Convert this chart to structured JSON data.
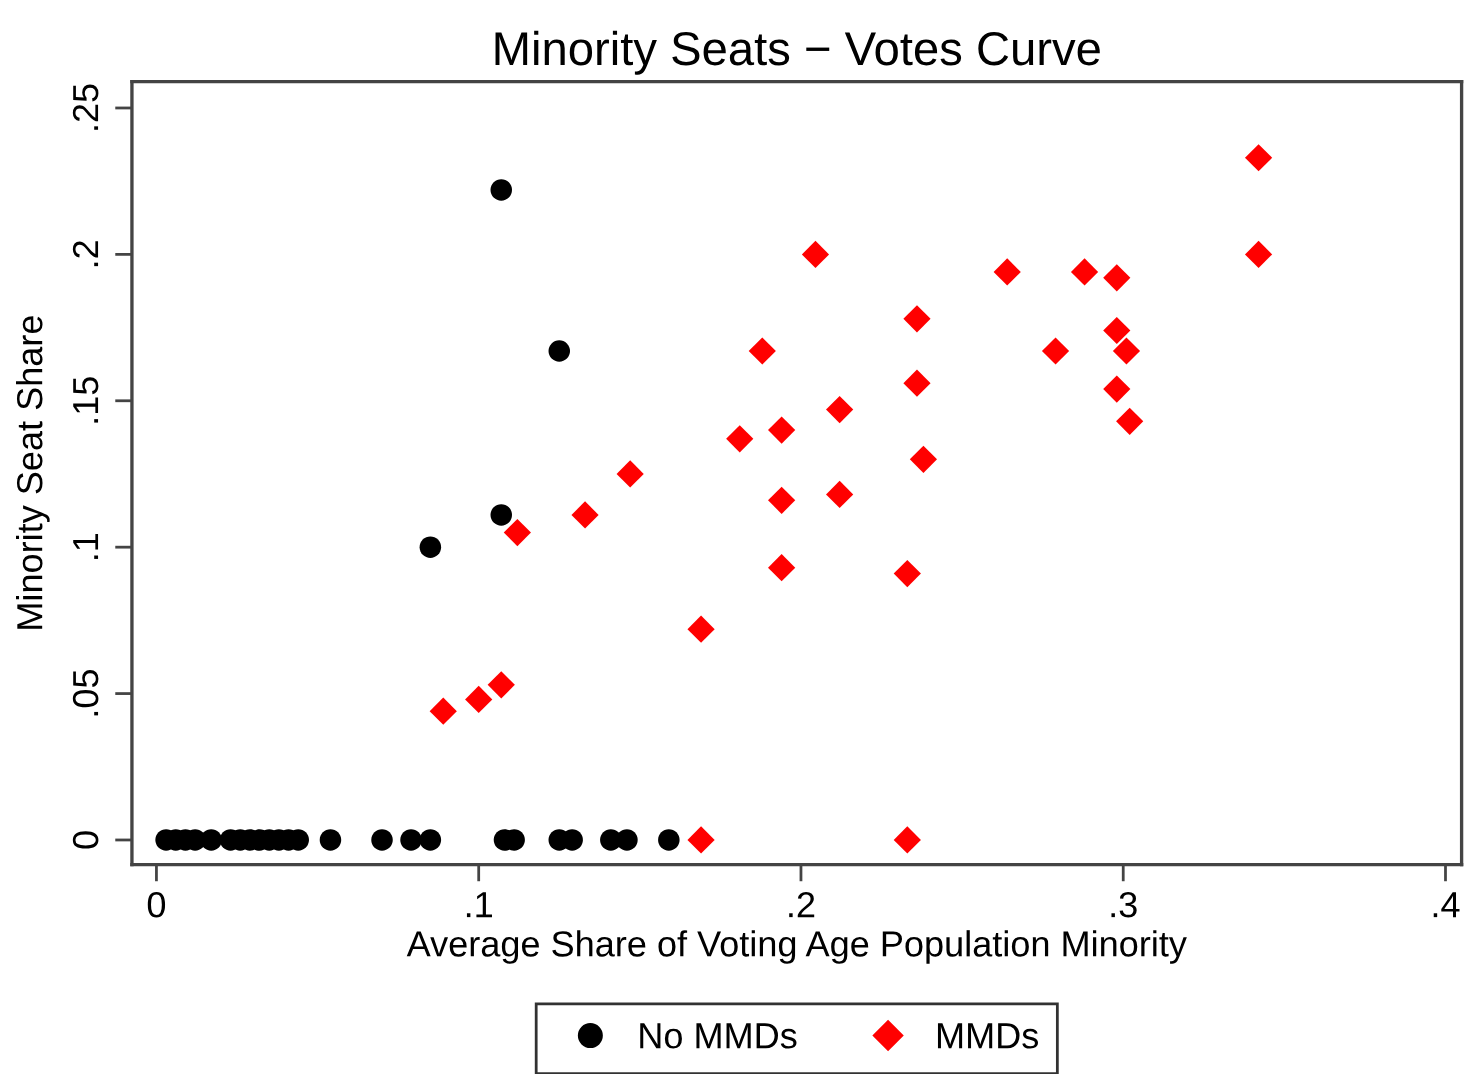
{
  "chart_data": {
    "type": "scatter",
    "title": "Minority Seats − Votes Curve",
    "xlabel": "Average Share of Voting Age Population Minority",
    "ylabel": "Minority Seat Share",
    "series": [
      {
        "name": "No MMDs",
        "color": "#000000",
        "marker": "circle",
        "x": [
          0.003,
          0.006,
          0.009,
          0.012,
          0.017,
          0.023,
          0.026,
          0.029,
          0.032,
          0.035,
          0.038,
          0.041,
          0.044,
          0.054,
          0.07,
          0.079,
          0.085,
          0.108,
          0.111,
          0.125,
          0.129,
          0.141,
          0.146,
          0.159,
          0.107,
          0.125,
          0.107,
          0.085
        ],
        "values": [
          0,
          0,
          0,
          0,
          0,
          0,
          0,
          0,
          0,
          0,
          0,
          0,
          0,
          0,
          0,
          0,
          0,
          0,
          0,
          0,
          0,
          0,
          0,
          0,
          0.222,
          0.167,
          0.111,
          0.1
        ]
      },
      {
        "name": "MMDs",
        "color": "#ff0000",
        "marker": "diamond",
        "x": [
          0.089,
          0.1,
          0.107,
          0.112,
          0.133,
          0.147,
          0.169,
          0.169,
          0.181,
          0.188,
          0.2045,
          0.194,
          0.194,
          0.194,
          0.212,
          0.212,
          0.236,
          0.236,
          0.238,
          0.233,
          0.233,
          0.264,
          0.279,
          0.288,
          0.298,
          0.298,
          0.301,
          0.298,
          0.302,
          0.342,
          0.342
        ],
        "values": [
          0.044,
          0.048,
          0.053,
          0.105,
          0.111,
          0.125,
          0.072,
          0,
          0.137,
          0.167,
          0.2,
          0.14,
          0.116,
          0.093,
          0.147,
          0.118,
          0.178,
          0.156,
          0.13,
          0.091,
          0,
          0.194,
          0.167,
          0.194,
          0.192,
          0.174,
          0.167,
          0.154,
          0.143,
          0.233,
          0.2
        ]
      }
    ],
    "xlim": [
      -0.0076,
      0.405
    ],
    "ylim": [
      -0.0084,
      0.259
    ],
    "xticks": [
      0,
      {
        "value": 0.1,
        "label": ".1"
      },
      {
        "value": 0.2,
        "label": ".2"
      },
      {
        "value": 0.3,
        "label": ".3"
      },
      {
        "value": 0.4,
        "label": ".4"
      }
    ],
    "yticks": [
      0,
      {
        "value": 0.05,
        "label": ".05"
      },
      {
        "value": 0.1,
        "label": ".1"
      },
      {
        "value": 0.15,
        "label": ".15"
      },
      {
        "value": 0.2,
        "label": ".2"
      },
      {
        "value": 0.25,
        "label": ".25"
      }
    ],
    "grid": false,
    "legend": "bottom"
  }
}
